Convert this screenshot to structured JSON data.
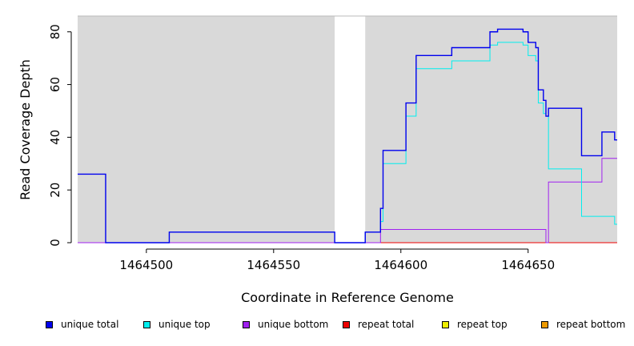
{
  "chart_data": {
    "type": "line",
    "xlabel": "Coordinate in Reference Genome",
    "ylabel": "Read Coverage Depth",
    "xlim": [
      1464473,
      1464685
    ],
    "ylim": [
      0,
      86
    ],
    "xticks": [
      1464500,
      1464550,
      1464600,
      1464650
    ],
    "xtick_labels": [
      "1464500",
      "1464550",
      "1464600",
      "1464650"
    ],
    "yticks": [
      0,
      20,
      40,
      60,
      80
    ],
    "ytick_labels": [
      "0",
      "20",
      "40",
      "60",
      "80"
    ],
    "background": "#d9d9d9",
    "gap_region": [
      1464574,
      1464586
    ],
    "legend": "bottom",
    "series": [
      {
        "name": "unique total",
        "color": "#0000ee",
        "x": [
          1464473,
          1464484,
          1464484,
          1464509,
          1464509,
          1464574,
          1464574,
          1464586,
          1464586,
          1464592,
          1464592,
          1464593,
          1464593,
          1464602,
          1464602,
          1464606,
          1464606,
          1464620,
          1464620,
          1464635,
          1464635,
          1464638,
          1464638,
          1464648,
          1464648,
          1464650,
          1464650,
          1464653,
          1464653,
          1464654,
          1464654,
          1464656,
          1464656,
          1464657,
          1464657,
          1464658,
          1464658,
          1464671,
          1464671,
          1464679,
          1464679,
          1464684,
          1464684,
          1464685
        ],
        "y": [
          26,
          26,
          0,
          0,
          4,
          4,
          0,
          0,
          4,
          4,
          13,
          13,
          35,
          35,
          53,
          53,
          71,
          71,
          74,
          74,
          80,
          80,
          81,
          81,
          80,
          80,
          76,
          76,
          74,
          74,
          58,
          58,
          54,
          54,
          48,
          48,
          51,
          51,
          33,
          33,
          42,
          42,
          39,
          39
        ]
      },
      {
        "name": "unique top",
        "color": "#00eeee",
        "x": [
          1464473,
          1464484,
          1464484,
          1464509,
          1464509,
          1464574,
          1464574,
          1464586,
          1464586,
          1464592,
          1464592,
          1464593,
          1464593,
          1464602,
          1464602,
          1464606,
          1464606,
          1464620,
          1464620,
          1464635,
          1464635,
          1464638,
          1464638,
          1464648,
          1464648,
          1464650,
          1464650,
          1464653,
          1464653,
          1464654,
          1464654,
          1464656,
          1464656,
          1464657,
          1464657,
          1464658,
          1464658,
          1464671,
          1464671,
          1464684,
          1464684,
          1464685
        ],
        "y": [
          26,
          26,
          0,
          0,
          4,
          4,
          0,
          0,
          4,
          4,
          8,
          8,
          30,
          30,
          48,
          48,
          66,
          66,
          69,
          69,
          75,
          75,
          76,
          76,
          75,
          75,
          71,
          71,
          69,
          69,
          53,
          53,
          49,
          49,
          48,
          48,
          28,
          28,
          10,
          10,
          7,
          7
        ]
      },
      {
        "name": "unique bottom",
        "color": "#a020f0",
        "x": [
          1464473,
          1464592,
          1464592,
          1464657,
          1464657,
          1464658,
          1464658,
          1464679,
          1464679,
          1464685
        ],
        "y": [
          0,
          0,
          5,
          5,
          0,
          0,
          23,
          23,
          32,
          32
        ]
      },
      {
        "name": "repeat total",
        "color": "#ee0000",
        "x": [
          1464473,
          1464685
        ],
        "y": [
          0,
          0
        ]
      },
      {
        "name": "repeat top",
        "color": "#eeee00",
        "x": [
          1464473,
          1464685
        ],
        "y": [
          0,
          0
        ]
      },
      {
        "name": "repeat bottom",
        "color": "#ee9a00",
        "x": [
          1464473,
          1464685
        ],
        "y": [
          0,
          0
        ]
      }
    ]
  }
}
